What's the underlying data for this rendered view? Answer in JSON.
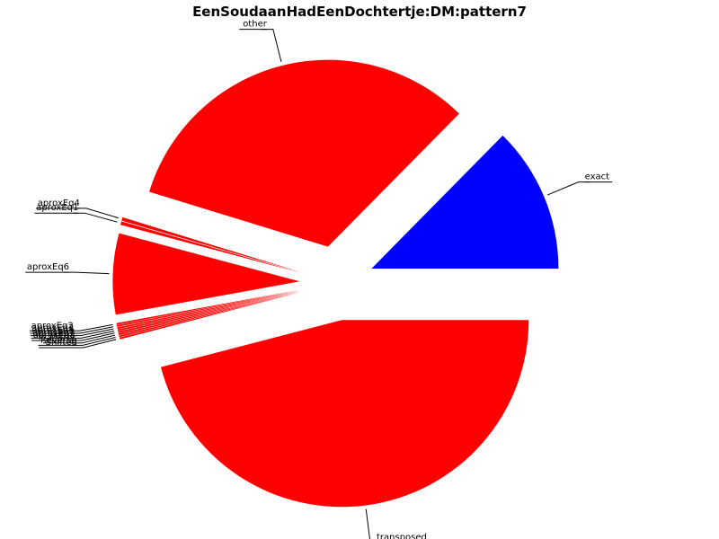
{
  "chart_data": {
    "type": "pie",
    "title": "EenSoudaanHadEenDochtertje:DM:pattern7",
    "slices": [
      {
        "label": "exact",
        "value": 12.6,
        "color": "#0000ff",
        "exploded": true
      },
      {
        "label": "other",
        "value": 32.6,
        "color": "#ff0000",
        "exploded": true
      },
      {
        "label": "aproxEq4",
        "value": 0.3,
        "color": "#ff0000",
        "exploded": true
      },
      {
        "label": "aproxEq1",
        "value": 0.3,
        "color": "#ff0000",
        "exploded": true
      },
      {
        "label": "aproxEq6",
        "value": 7.0,
        "color": "#ff0000",
        "exploded": true
      },
      {
        "label": "aproxEq2",
        "value": 0.15,
        "color": "#ff0000",
        "exploded": true
      },
      {
        "label": "aproxEq3",
        "value": 0.15,
        "color": "#ff0000",
        "exploded": true
      },
      {
        "label": "aproxEq5",
        "value": 0.15,
        "color": "#ff0000",
        "exploded": true
      },
      {
        "label": "aproxEq7",
        "value": 0.15,
        "color": "#ff0000",
        "exploded": true
      },
      {
        "label": "aproxEq8",
        "value": 0.15,
        "color": "#ff0000",
        "exploded": true
      },
      {
        "label": "Mirror",
        "value": 0.15,
        "color": "#ff0000",
        "exploded": true
      },
      {
        "label": "Reverse",
        "value": 0.15,
        "color": "#ff0000",
        "exploded": true
      },
      {
        "label": "Shifted",
        "value": 0.15,
        "color": "#ff0000",
        "exploded": true
      },
      {
        "label": "transposed",
        "value": 45.9,
        "color": "#ff0000",
        "exploded": true
      }
    ],
    "legend": "none"
  }
}
